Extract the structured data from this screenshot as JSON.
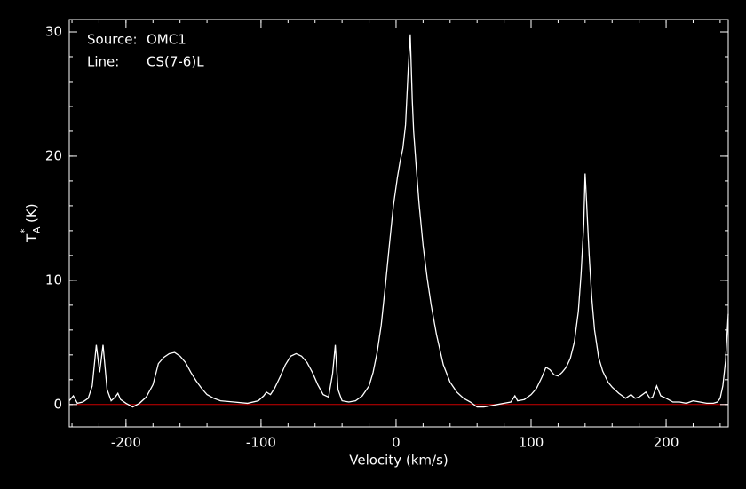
{
  "chart_data": {
    "type": "line",
    "x_label": "Velocity (km/s)",
    "y_label": {
      "main": "T",
      "sup": "*",
      "sub": "A",
      "unit": "(K)"
    },
    "annotations": [
      {
        "key": "Source:",
        "value": "OMC1"
      },
      {
        "key": "Line:",
        "value": "CS(7-6)L"
      }
    ],
    "x": [
      -242,
      -239,
      -236,
      -232,
      -228,
      -225,
      -222,
      -219.5,
      -217,
      -214,
      -211,
      -208,
      -206,
      -204,
      -200,
      -195,
      -190,
      -185,
      -180,
      -176,
      -172,
      -168,
      -164,
      -160,
      -156,
      -152,
      -148,
      -144,
      -140,
      -135,
      -130,
      -120,
      -110,
      -102,
      -98,
      -96,
      -93,
      -90,
      -86,
      -82,
      -78,
      -74,
      -70,
      -66,
      -62,
      -58,
      -54,
      -50,
      -47,
      -45,
      -43,
      -40,
      -35,
      -30,
      -25,
      -20,
      -17,
      -14,
      -11,
      -8,
      -5,
      -2,
      1,
      3,
      5,
      7,
      9,
      10.5,
      12,
      13,
      15,
      17,
      20,
      23,
      26,
      30,
      35,
      40,
      45,
      50,
      55,
      60,
      65,
      70,
      75,
      80,
      85,
      88,
      90,
      95,
      100,
      104,
      108,
      111,
      114,
      117,
      120,
      123,
      126,
      129,
      132,
      135,
      137,
      139,
      140,
      141,
      143,
      145,
      147,
      150,
      153,
      157,
      160,
      165,
      170,
      174,
      177,
      180,
      185,
      188,
      190,
      193,
      196,
      200,
      205,
      210,
      215,
      220,
      225,
      230,
      235,
      238,
      240,
      242,
      244,
      246
    ],
    "values": [
      0.3,
      0.7,
      0.1,
      0.2,
      0.5,
      1.5,
      4.8,
      2.6,
      4.8,
      1.2,
      0.3,
      0.6,
      0.9,
      0.4,
      0.1,
      -0.2,
      0.1,
      0.6,
      1.6,
      3.3,
      3.8,
      4.1,
      4.2,
      3.9,
      3.4,
      2.6,
      1.9,
      1.3,
      0.8,
      0.5,
      0.3,
      0.2,
      0.1,
      0.3,
      0.7,
      1.0,
      0.8,
      1.3,
      2.2,
      3.2,
      3.9,
      4.1,
      3.9,
      3.4,
      2.6,
      1.6,
      0.8,
      0.6,
      2.5,
      4.8,
      1.2,
      0.3,
      0.2,
      0.3,
      0.7,
      1.5,
      2.6,
      4.2,
      6.4,
      9.5,
      12.8,
      16.0,
      18.3,
      19.6,
      20.6,
      22.5,
      27.0,
      29.8,
      24.5,
      22.0,
      19.0,
      16.2,
      12.8,
      10.2,
      8.0,
      5.6,
      3.2,
      1.8,
      1.0,
      0.5,
      0.2,
      -0.2,
      -0.2,
      -0.1,
      0.0,
      0.1,
      0.2,
      0.7,
      0.3,
      0.4,
      0.8,
      1.3,
      2.2,
      3.0,
      2.8,
      2.4,
      2.3,
      2.6,
      3.0,
      3.7,
      5.0,
      7.5,
      10.5,
      14.5,
      18.6,
      16.5,
      12.0,
      8.5,
      6.0,
      3.8,
      2.7,
      1.8,
      1.4,
      0.9,
      0.5,
      0.8,
      0.5,
      0.6,
      1.0,
      0.5,
      0.6,
      1.5,
      0.7,
      0.5,
      0.2,
      0.2,
      0.1,
      0.3,
      0.2,
      0.1,
      0.1,
      0.2,
      0.5,
      1.5,
      3.5,
      7.3
    ],
    "color": "#ffffff",
    "baseline": {
      "value": 0,
      "color": "#cc0000"
    },
    "xlim": [
      -242,
      246
    ],
    "ylim": [
      -1.8,
      31
    ],
    "xticks": [
      -200,
      -100,
      0,
      100,
      200
    ],
    "yticks": [
      0,
      10,
      20,
      30
    ],
    "background": "#000000",
    "frame_color": "#ffffff"
  }
}
